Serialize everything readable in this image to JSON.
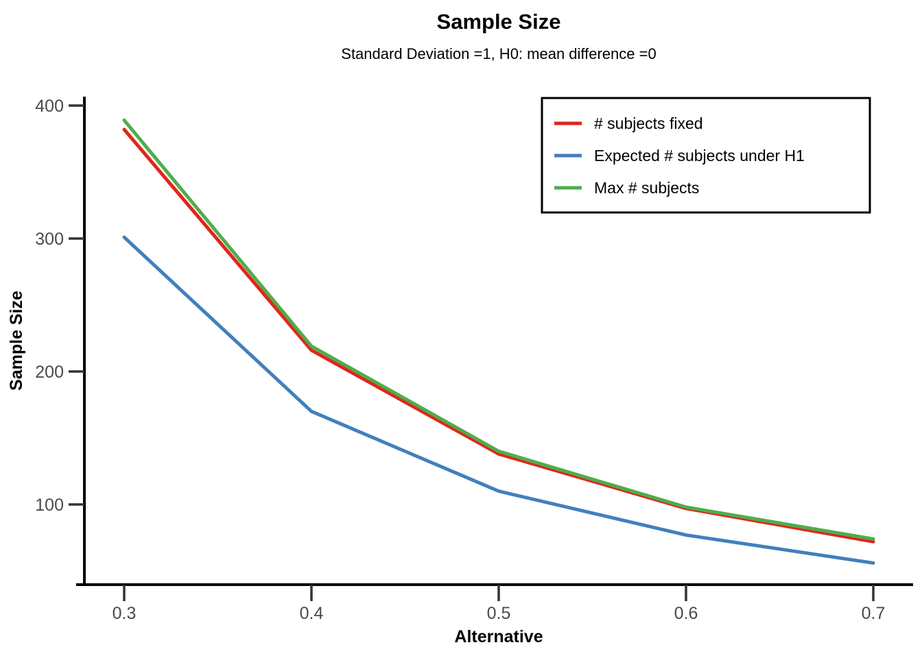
{
  "page": {
    "background_color": "#ffffff"
  },
  "chart_data": {
    "type": "line",
    "title": "Sample Size",
    "subtitle": "Standard Deviation =1, H0: mean difference =0",
    "xlabel": "Alternative",
    "ylabel": "Sample Size",
    "x": [
      0.3,
      0.4,
      0.5,
      0.6,
      0.7
    ],
    "x_tick_labels": [
      "0.3",
      "0.4",
      "0.5",
      "0.6",
      "0.7"
    ],
    "y_tick_values": [
      100,
      200,
      300,
      400
    ],
    "y_tick_labels": [
      "100",
      "200",
      "300",
      "400"
    ],
    "xlim": [
      0.3,
      0.7
    ],
    "ylim": [
      55,
      400
    ],
    "grid": false,
    "legend_position": "top-right",
    "series": [
      {
        "name": "# subjects fixed",
        "key": "n-subjects-fixed",
        "color": "#e0261c",
        "values": [
          382,
          216,
          138,
          97,
          72
        ]
      },
      {
        "name": "Expected # subjects under H1",
        "key": "expected-n-subjects-h1",
        "color": "#4180bc",
        "values": [
          301,
          170,
          110,
          77,
          56
        ]
      },
      {
        "name": "Max # subjects",
        "key": "max-n-subjects",
        "color": "#4fad4b",
        "values": [
          389,
          219,
          140,
          98,
          74
        ]
      }
    ],
    "colors": {
      "axis_line": "#000000",
      "tick_label": "#4a4a4a",
      "text": "#000000"
    }
  }
}
